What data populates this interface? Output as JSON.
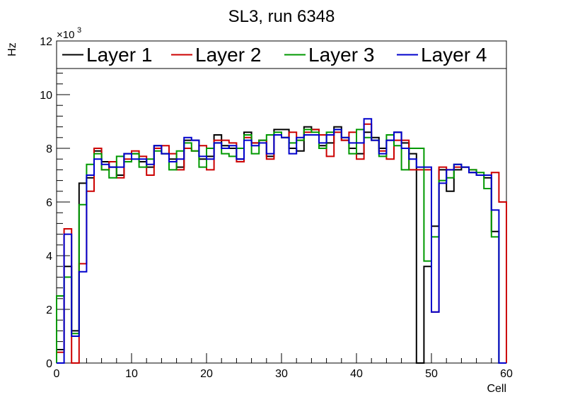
{
  "chart_data": {
    "type": "line",
    "title": "SL3, run 6348",
    "xlabel": "Cell",
    "ylabel": "Hz",
    "y_multiplier_label": "×10",
    "y_multiplier_exponent": "3",
    "xlim": [
      0,
      60
    ],
    "ylim": [
      0,
      12
    ],
    "x_ticks": [
      0,
      10,
      20,
      30,
      40,
      50,
      60
    ],
    "y_ticks": [
      0,
      2,
      4,
      6,
      8,
      10,
      12
    ],
    "legend_position": "top",
    "grid": false,
    "series": [
      {
        "name": "Layer 1",
        "color": "#000000",
        "values": [
          0.5,
          3.6,
          1.2,
          6.7,
          6.9,
          7.9,
          7.5,
          7.3,
          7.0,
          7.8,
          7.8,
          7.5,
          7.3,
          8.1,
          7.8,
          7.6,
          7.3,
          8.3,
          8.3,
          7.6,
          7.7,
          8.5,
          8.1,
          8.0,
          7.6,
          8.6,
          8.2,
          8.3,
          7.7,
          8.7,
          8.7,
          8.0,
          7.9,
          8.8,
          8.7,
          8.1,
          8.2,
          8.8,
          8.3,
          8.0,
          7.8,
          8.6,
          8.4,
          8.0,
          8.3,
          8.6,
          8.2,
          7.8,
          0.0,
          3.6,
          5.1,
          7.2,
          6.4,
          7.2,
          7.3,
          7.1,
          7.0,
          6.9,
          4.9,
          0.0
        ]
      },
      {
        "name": "Layer 2",
        "color": "#cc0000",
        "values": [
          0.4,
          5.0,
          0.0,
          3.7,
          6.4,
          8.0,
          7.2,
          7.5,
          6.9,
          7.6,
          7.9,
          7.7,
          7.0,
          8.0,
          8.1,
          7.8,
          7.2,
          8.0,
          7.9,
          8.1,
          7.2,
          8.3,
          8.3,
          8.2,
          7.5,
          8.4,
          8.2,
          8.3,
          7.6,
          8.5,
          8.4,
          8.6,
          8.3,
          8.6,
          8.7,
          8.5,
          7.7,
          8.6,
          8.3,
          8.6,
          7.6,
          8.9,
          8.3,
          7.9,
          7.6,
          8.3,
          8.3,
          7.2,
          7.2,
          7.2,
          1.9,
          7.3,
          7.2,
          7.3,
          7.3,
          7.2,
          7.0,
          7.0,
          7.1,
          6.0
        ]
      },
      {
        "name": "Layer 3",
        "color": "#009900",
        "values": [
          2.5,
          3.2,
          1.1,
          5.9,
          7.4,
          7.8,
          7.2,
          6.9,
          7.7,
          7.5,
          7.8,
          7.3,
          7.6,
          7.9,
          7.8,
          7.2,
          7.9,
          8.2,
          7.9,
          7.3,
          8.0,
          8.2,
          7.8,
          7.7,
          8.0,
          8.5,
          7.8,
          8.3,
          8.5,
          8.6,
          8.4,
          8.2,
          8.3,
          8.7,
          8.6,
          8.0,
          8.6,
          8.7,
          8.4,
          7.8,
          8.7,
          8.4,
          8.3,
          7.7,
          8.5,
          8.1,
          7.2,
          8.0,
          8.0,
          3.8,
          4.7,
          6.8,
          6.9,
          7.4,
          7.3,
          7.2,
          7.1,
          6.5,
          4.7,
          0.0
        ]
      },
      {
        "name": "Layer 4",
        "color": "#0000cc",
        "values": [
          0.0,
          4.8,
          1.0,
          3.4,
          7.0,
          7.6,
          7.4,
          7.3,
          7.3,
          7.8,
          7.6,
          7.6,
          7.4,
          8.1,
          7.8,
          7.5,
          7.6,
          8.4,
          8.3,
          7.7,
          7.6,
          8.2,
          8.0,
          8.1,
          7.6,
          8.3,
          8.1,
          8.2,
          7.8,
          8.5,
          8.4,
          7.8,
          8.4,
          8.5,
          8.5,
          8.2,
          8.5,
          8.7,
          8.4,
          8.2,
          8.2,
          9.1,
          8.3,
          7.8,
          8.3,
          8.6,
          8.0,
          7.6,
          7.3,
          7.3,
          1.9,
          6.7,
          7.2,
          7.4,
          7.3,
          7.1,
          7.0,
          7.0,
          5.7,
          0.0
        ]
      }
    ]
  }
}
